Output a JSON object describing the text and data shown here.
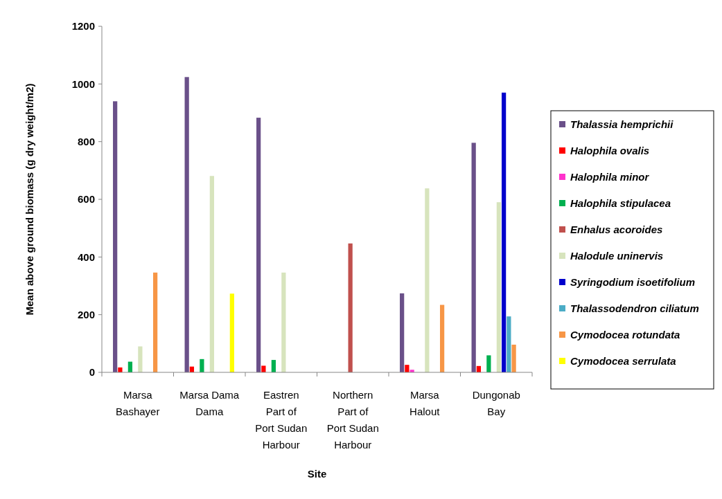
{
  "chart_data": {
    "type": "bar",
    "xlabel": "Site",
    "ylabel": "Mean above ground biomass (g dry weight/m2)",
    "categories": [
      "Marsa Bashayer",
      "Marsa Dama Dama",
      "Eastren Part of Port Sudan Harbour",
      "Northern Part of Port Sudan Harbour",
      "Marsa Halout",
      "Dungonab Bay"
    ],
    "ylim": [
      0,
      1200
    ],
    "yticks": [
      0,
      200,
      400,
      600,
      800,
      1000,
      1200
    ],
    "grid": false,
    "legend": "right",
    "series": [
      {
        "name": "Thalassia hemprichii",
        "color": "#6a5089",
        "values": [
          940,
          1024,
          883,
          null,
          274,
          796
        ]
      },
      {
        "name": "Halophila ovalis",
        "color": "#ff0000",
        "values": [
          17,
          20,
          23,
          null,
          26,
          22
        ]
      },
      {
        "name": "Halophila minor",
        "color": "#ff33cc",
        "values": [
          null,
          null,
          null,
          null,
          9,
          null
        ]
      },
      {
        "name": "Halophila stipulacea",
        "color": "#00b050",
        "values": [
          37,
          46,
          43,
          null,
          null,
          59
        ]
      },
      {
        "name": "Enhalus acoroides",
        "color": "#c0504d",
        "values": [
          null,
          null,
          null,
          447,
          null,
          null
        ]
      },
      {
        "name": "Halodule uninervis",
        "color": "#d7e4bd",
        "values": [
          90,
          681,
          346,
          null,
          638,
          590
        ]
      },
      {
        "name": "Syringodium isoetifolium",
        "color": "#0000cc",
        "values": [
          null,
          null,
          null,
          null,
          null,
          970
        ]
      },
      {
        "name": "Thalassodendron ciliatum",
        "color": "#4bacc6",
        "values": [
          null,
          null,
          null,
          null,
          null,
          194
        ]
      },
      {
        "name": "Cymodocea rotundata",
        "color": "#f79646",
        "values": [
          346,
          null,
          null,
          null,
          234,
          96
        ]
      },
      {
        "name": "Cymodocea serrulata",
        "color": "#ffff00",
        "values": [
          null,
          273,
          null,
          null,
          null,
          null
        ]
      }
    ]
  }
}
